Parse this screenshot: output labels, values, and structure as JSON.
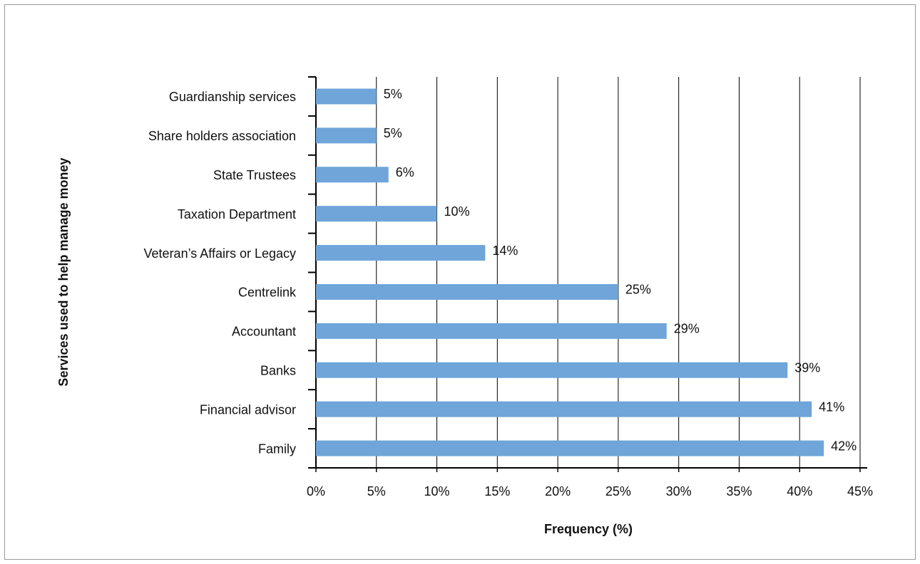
{
  "chart_data": {
    "type": "bar",
    "orientation": "horizontal",
    "x_label": "Frequency (%)",
    "y_label": "Services used to help manage money",
    "categories": [
      "Guardianship services",
      "Share holders association",
      "State Trustees",
      "Taxation Department",
      "Veteran’s Affairs or Legacy",
      "Centrelink",
      "Accountant",
      "Banks",
      "Financial advisor",
      "Family"
    ],
    "values": [
      5,
      5,
      6,
      10,
      14,
      25,
      29,
      39,
      41,
      42
    ],
    "value_labels": [
      "5%",
      "5%",
      "6%",
      "10%",
      "14%",
      "25%",
      "29%",
      "39%",
      "41%",
      "42%"
    ],
    "color": "#6fa5d9",
    "xlim": [
      0,
      45
    ],
    "xticks": [
      {
        "value": 0,
        "label": "0%"
      },
      {
        "value": 5,
        "label": "5%"
      },
      {
        "value": 10,
        "label": "10%"
      },
      {
        "value": 15,
        "label": "15%"
      },
      {
        "value": 20,
        "label": "20%"
      },
      {
        "value": 25,
        "label": "25%"
      },
      {
        "value": 30,
        "label": "30%"
      },
      {
        "value": 35,
        "label": "35%"
      },
      {
        "value": 40,
        "label": "40%"
      },
      {
        "value": 45,
        "label": "45%"
      }
    ],
    "grid": true
  }
}
